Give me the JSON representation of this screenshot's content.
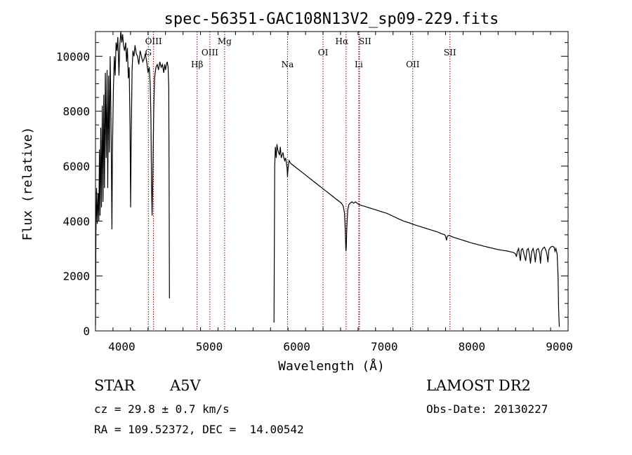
{
  "chart_data": {
    "type": "line",
    "title": "spec-56351-GAC108N13V2_sp09-229.fits",
    "xlabel": "Wavelength (Å)",
    "ylabel": "Flux (relative)",
    "xlim": [
      3700,
      9100
    ],
    "ylim": [
      0,
      10900
    ],
    "xticks": [
      4000,
      5000,
      6000,
      7000,
      8000,
      9000
    ],
    "yticks": [
      0,
      2000,
      4000,
      6000,
      8000,
      10000
    ],
    "grid": false,
    "line_color": "#000000",
    "marker_color": "#8b0000",
    "spectral_lines": [
      {
        "name": "G",
        "x": 4304
      },
      {
        "name": "OIII",
        "x": 4363
      },
      {
        "name": "Hβ",
        "x": 4861
      },
      {
        "name": "OIII",
        "x": 5007
      },
      {
        "name": "Mg",
        "x": 5175
      },
      {
        "name": "Na",
        "x": 5894
      },
      {
        "name": "OI",
        "x": 6300
      },
      {
        "name": "Hα",
        "x": 6563
      },
      {
        "name": "SII",
        "x": 6716
      },
      {
        "name": "Li",
        "x": 6708
      },
      {
        "name": "OII",
        "x": 7325
      },
      {
        "name": "SII",
        "x": 7750
      }
    ],
    "series": [
      {
        "points": [
          [
            3700,
            200
          ],
          [
            3705,
            3500
          ],
          [
            3712,
            5200
          ],
          [
            3720,
            3900
          ],
          [
            3730,
            5000
          ],
          [
            3738,
            4000
          ],
          [
            3745,
            6600
          ],
          [
            3752,
            4200
          ],
          [
            3760,
            7400
          ],
          [
            3768,
            4500
          ],
          [
            3778,
            8200
          ],
          [
            3786,
            4700
          ],
          [
            3795,
            8600
          ],
          [
            3803,
            5200
          ],
          [
            3812,
            9400
          ],
          [
            3822,
            6300
          ],
          [
            3832,
            9500
          ],
          [
            3840,
            5200
          ],
          [
            3850,
            9300
          ],
          [
            3858,
            6500
          ],
          [
            3868,
            10000
          ],
          [
            3878,
            7400
          ],
          [
            3888,
            3700
          ],
          [
            3893,
            6500
          ],
          [
            3905,
            8800
          ],
          [
            3915,
            10000
          ],
          [
            3925,
            9300
          ],
          [
            3935,
            10500
          ],
          [
            3945,
            10200
          ],
          [
            3955,
            10700
          ],
          [
            3968,
            9300
          ],
          [
            3978,
            10400
          ],
          [
            3990,
            10900
          ],
          [
            4000,
            10500
          ],
          [
            4010,
            10800
          ],
          [
            4020,
            10400
          ],
          [
            4032,
            10200
          ],
          [
            4045,
            10500
          ],
          [
            4055,
            9800
          ],
          [
            4065,
            10300
          ],
          [
            4075,
            9200
          ],
          [
            4085,
            9600
          ],
          [
            4095,
            7400
          ],
          [
            4101,
            4500
          ],
          [
            4108,
            6900
          ],
          [
            4118,
            9500
          ],
          [
            4128,
            10200
          ],
          [
            4140,
            10000
          ],
          [
            4152,
            10400
          ],
          [
            4165,
            10100
          ],
          [
            4180,
            10000
          ],
          [
            4195,
            9700
          ],
          [
            4210,
            10200
          ],
          [
            4225,
            10000
          ],
          [
            4240,
            9800
          ],
          [
            4255,
            9900
          ],
          [
            4270,
            10100
          ],
          [
            4285,
            9800
          ],
          [
            4300,
            9400
          ],
          [
            4315,
            9600
          ],
          [
            4325,
            9000
          ],
          [
            4333,
            7800
          ],
          [
            4340,
            5300
          ],
          [
            4347,
            4200
          ],
          [
            4355,
            5600
          ],
          [
            4365,
            8000
          ],
          [
            4375,
            9200
          ],
          [
            4390,
            9600
          ],
          [
            4405,
            9700
          ],
          [
            4420,
            9500
          ],
          [
            4435,
            9800
          ],
          [
            4450,
            9600
          ],
          [
            4465,
            9700
          ],
          [
            4480,
            9400
          ],
          [
            4490,
            9700
          ],
          [
            4500,
            9500
          ],
          [
            4510,
            9700
          ],
          [
            4520,
            9800
          ],
          [
            4530,
            9600
          ],
          [
            4537,
            8900
          ],
          [
            4541,
            5600
          ],
          [
            4545,
            1200
          ],
          [
            4550,
            1200
          ],
          [
            5740,
            300
          ],
          [
            5748,
            6000
          ],
          [
            5755,
            6700
          ],
          [
            5765,
            6300
          ],
          [
            5773,
            6800
          ],
          [
            5782,
            6600
          ],
          [
            5792,
            6500
          ],
          [
            5802,
            6400
          ],
          [
            5812,
            6700
          ],
          [
            5822,
            6300
          ],
          [
            5832,
            6400
          ],
          [
            5842,
            6500
          ],
          [
            5852,
            6300
          ],
          [
            5862,
            6200
          ],
          [
            5872,
            6300
          ],
          [
            5882,
            6100
          ],
          [
            5890,
            5900
          ],
          [
            5894,
            5600
          ],
          [
            5900,
            5900
          ],
          [
            5912,
            6200
          ],
          [
            5930,
            6100
          ],
          [
            5950,
            6050
          ],
          [
            5970,
            6000
          ],
          [
            5990,
            5950
          ],
          [
            6010,
            5900
          ],
          [
            6030,
            5850
          ],
          [
            6050,
            5800
          ],
          [
            6070,
            5750
          ],
          [
            6090,
            5700
          ],
          [
            6110,
            5650
          ],
          [
            6130,
            5600
          ],
          [
            6150,
            5550
          ],
          [
            6170,
            5500
          ],
          [
            6190,
            5450
          ],
          [
            6210,
            5400
          ],
          [
            6230,
            5350
          ],
          [
            6250,
            5300
          ],
          [
            6270,
            5250
          ],
          [
            6290,
            5200
          ],
          [
            6310,
            5150
          ],
          [
            6330,
            5100
          ],
          [
            6350,
            5050
          ],
          [
            6370,
            5000
          ],
          [
            6390,
            4950
          ],
          [
            6410,
            4900
          ],
          [
            6430,
            4850
          ],
          [
            6450,
            4800
          ],
          [
            6470,
            4750
          ],
          [
            6490,
            4700
          ],
          [
            6510,
            4650
          ],
          [
            6530,
            4550
          ],
          [
            6545,
            4300
          ],
          [
            6555,
            3600
          ],
          [
            6560,
            3000
          ],
          [
            6563,
            2900
          ],
          [
            6566,
            3100
          ],
          [
            6572,
            3800
          ],
          [
            6582,
            4400
          ],
          [
            6595,
            4600
          ],
          [
            6610,
            4650
          ],
          [
            6630,
            4700
          ],
          [
            6650,
            4650
          ],
          [
            6670,
            4700
          ],
          [
            6690,
            4650
          ],
          [
            6710,
            4600
          ],
          [
            6730,
            4580
          ],
          [
            6750,
            4560
          ],
          [
            6770,
            4540
          ],
          [
            6790,
            4520
          ],
          [
            6810,
            4500
          ],
          [
            6830,
            4480
          ],
          [
            6850,
            4460
          ],
          [
            6870,
            4440
          ],
          [
            6890,
            4420
          ],
          [
            6910,
            4400
          ],
          [
            6930,
            4380
          ],
          [
            6950,
            4360
          ],
          [
            6970,
            4340
          ],
          [
            6990,
            4320
          ],
          [
            7010,
            4300
          ],
          [
            7030,
            4280
          ],
          [
            7050,
            4250
          ],
          [
            7070,
            4220
          ],
          [
            7090,
            4190
          ],
          [
            7110,
            4160
          ],
          [
            7130,
            4130
          ],
          [
            7150,
            4100
          ],
          [
            7170,
            4070
          ],
          [
            7190,
            4040
          ],
          [
            7210,
            4010
          ],
          [
            7230,
            3990
          ],
          [
            7250,
            3970
          ],
          [
            7270,
            3950
          ],
          [
            7290,
            3930
          ],
          [
            7310,
            3900
          ],
          [
            7330,
            3880
          ],
          [
            7350,
            3860
          ],
          [
            7370,
            3840
          ],
          [
            7390,
            3820
          ],
          [
            7410,
            3800
          ],
          [
            7430,
            3780
          ],
          [
            7450,
            3760
          ],
          [
            7470,
            3740
          ],
          [
            7490,
            3720
          ],
          [
            7510,
            3700
          ],
          [
            7530,
            3680
          ],
          [
            7550,
            3660
          ],
          [
            7570,
            3640
          ],
          [
            7590,
            3620
          ],
          [
            7610,
            3600
          ],
          [
            7630,
            3570
          ],
          [
            7650,
            3540
          ],
          [
            7670,
            3520
          ],
          [
            7690,
            3500
          ],
          [
            7700,
            3450
          ],
          [
            7710,
            3300
          ],
          [
            7720,
            3450
          ],
          [
            7740,
            3480
          ],
          [
            7760,
            3450
          ],
          [
            7780,
            3420
          ],
          [
            7800,
            3400
          ],
          [
            7820,
            3380
          ],
          [
            7840,
            3360
          ],
          [
            7860,
            3340
          ],
          [
            7880,
            3320
          ],
          [
            7900,
            3300
          ],
          [
            7920,
            3280
          ],
          [
            7940,
            3260
          ],
          [
            7960,
            3240
          ],
          [
            7980,
            3220
          ],
          [
            8000,
            3200
          ],
          [
            8020,
            3180
          ],
          [
            8040,
            3170
          ],
          [
            8060,
            3150
          ],
          [
            8080,
            3130
          ],
          [
            8100,
            3120
          ],
          [
            8120,
            3100
          ],
          [
            8140,
            3080
          ],
          [
            8160,
            3070
          ],
          [
            8180,
            3050
          ],
          [
            8200,
            3040
          ],
          [
            8220,
            3020
          ],
          [
            8240,
            3010
          ],
          [
            8260,
            2990
          ],
          [
            8280,
            2980
          ],
          [
            8300,
            2960
          ],
          [
            8320,
            2950
          ],
          [
            8340,
            2940
          ],
          [
            8360,
            2930
          ],
          [
            8380,
            2920
          ],
          [
            8400,
            2910
          ],
          [
            8420,
            2900
          ],
          [
            8440,
            2880
          ],
          [
            8460,
            2870
          ],
          [
            8480,
            2850
          ],
          [
            8500,
            2800
          ],
          [
            8510,
            2700
          ],
          [
            8520,
            2900
          ],
          [
            8535,
            3000
          ],
          [
            8545,
            2750
          ],
          [
            8555,
            2550
          ],
          [
            8565,
            2950
          ],
          [
            8580,
            3000
          ],
          [
            8600,
            2750
          ],
          [
            8615,
            2550
          ],
          [
            8630,
            2950
          ],
          [
            8645,
            3000
          ],
          [
            8660,
            2750
          ],
          [
            8670,
            2450
          ],
          [
            8685,
            2900
          ],
          [
            8700,
            3000
          ],
          [
            8715,
            2800
          ],
          [
            8725,
            2500
          ],
          [
            8740,
            2950
          ],
          [
            8760,
            3000
          ],
          [
            8775,
            2800
          ],
          [
            8785,
            2450
          ],
          [
            8795,
            2900
          ],
          [
            8810,
            3000
          ],
          [
            8830,
            3050
          ],
          [
            8850,
            2900
          ],
          [
            8860,
            2750
          ],
          [
            8870,
            2500
          ],
          [
            8880,
            2950
          ],
          [
            8900,
            3050
          ],
          [
            8920,
            3080
          ],
          [
            8940,
            3050
          ],
          [
            8950,
            2900
          ],
          [
            8960,
            3000
          ],
          [
            8975,
            2800
          ],
          [
            8985,
            2000
          ],
          [
            8992,
            800
          ],
          [
            9000,
            150
          ]
        ]
      }
    ]
  },
  "info": {
    "object_type": "STAR",
    "spectral_class": "A5V",
    "survey": "LAMOST DR2",
    "cz": "cz = 29.8 ± 0.7 km/s",
    "obs_date": "Obs-Date: 20130227",
    "coords": "RA = 109.52372, DEC =  14.00542"
  }
}
